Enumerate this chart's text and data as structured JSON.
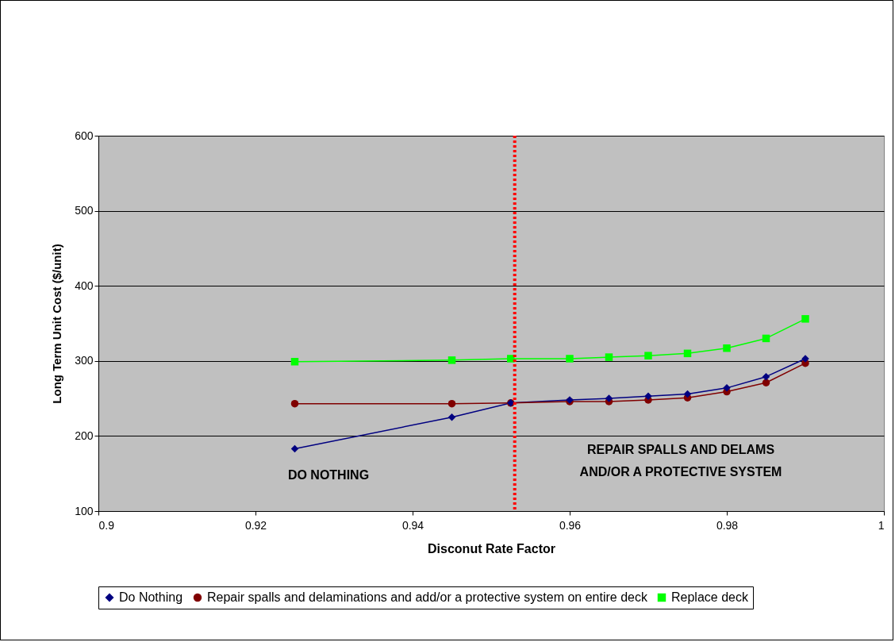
{
  "chart_data": {
    "type": "line",
    "xlabel": "Disconut Rate Factor",
    "ylabel": "Long Term Unit Cost ($/unit)",
    "x": [
      0.925,
      0.945,
      0.9525,
      0.96,
      0.965,
      0.97,
      0.975,
      0.98,
      0.985,
      0.99
    ],
    "series": [
      {
        "name": "Do Nothing",
        "color": "#000080",
        "marker": "diamond",
        "values": [
          183,
          225,
          244,
          248,
          250,
          253,
          256,
          264,
          279,
          303
        ]
      },
      {
        "name": "Repair spalls and delaminations and add/or a protective system on entire deck",
        "color": "#800000",
        "marker": "circle",
        "values": [
          243,
          243,
          244,
          246,
          246,
          248,
          251,
          259,
          271,
          297
        ]
      },
      {
        "name": "Replace deck",
        "color": "#00ff00",
        "marker": "square",
        "values": [
          299,
          301,
          303,
          303,
          305,
          307,
          310,
          317,
          330,
          356
        ]
      }
    ],
    "xlim": [
      0.9,
      1
    ],
    "xticks": [
      0.9,
      0.92,
      0.94,
      0.96,
      0.98,
      1
    ],
    "ylim": [
      100,
      600
    ],
    "yticks": [
      100,
      200,
      300,
      400,
      500,
      600
    ],
    "grid": "y",
    "legend": "bottom",
    "line_style": "solid",
    "ref_lines": [
      {
        "axis": "x",
        "value": 0.953,
        "color": "#ff0000",
        "line_style": "dotted"
      }
    ],
    "annotations": [
      "DO NOTHING",
      "REPAIR SPALLS AND DELAMS\nAND/OR A PROTECTIVE SYSTEM"
    ]
  }
}
